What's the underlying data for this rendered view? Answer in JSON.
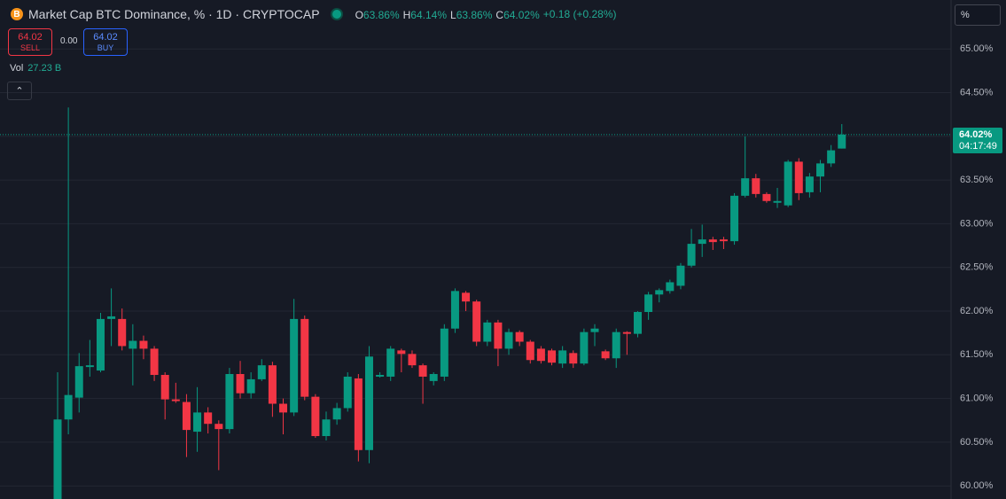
{
  "chart_data": {
    "type": "candlestick",
    "title": "Market Cap BTC Dominance, % · 1D · CRYPTOCAP",
    "ohlc_legend": [
      {
        "label": "O",
        "value": "63.86%"
      },
      {
        "label": "H",
        "value": "64.14%"
      },
      {
        "label": "L",
        "value": "63.86%"
      },
      {
        "label": "C",
        "value": "64.02%"
      }
    ],
    "change": "+0.18 (+0.28%)",
    "sell": {
      "price": "64.02",
      "label": "SELL"
    },
    "spread": "0.00",
    "buy": {
      "price": "64.02",
      "label": "BUY"
    },
    "volume": {
      "label": "Vol",
      "value": "27.23 B"
    },
    "scale_mode": "%",
    "up_color": "#089981",
    "down_color": "#f23645",
    "open": [
      59.85,
      60.76,
      61.01,
      61.36,
      61.32,
      61.91,
      61.91,
      61.57,
      61.66,
      61.57,
      61.27,
      60.99,
      60.96,
      60.62,
      60.84,
      60.71,
      60.65,
      61.28,
      61.06,
      61.22,
      61.38,
      60.94,
      60.84,
      61.91,
      61.02,
      60.57,
      60.76,
      60.89,
      61.23,
      60.41,
      61.25,
      61.25,
      61.55,
      61.51,
      61.38,
      61.2,
      61.25,
      61.8,
      62.21,
      62.11,
      61.65,
      61.87,
      61.57,
      61.76,
      61.65,
      61.57,
      61.55,
      61.4,
      61.52,
      61.4,
      61.76,
      61.54,
      61.46,
      61.76,
      61.74,
      61.99,
      62.19,
      62.23,
      62.29,
      62.52,
      62.77,
      62.82,
      62.82,
      62.8,
      63.32,
      63.52,
      63.34,
      63.24,
      63.21,
      63.71,
      63.36,
      63.54,
      63.69,
      63.86
    ],
    "high": [
      61.3,
      64.33,
      61.52,
      61.67,
      61.98,
      62.26,
      62.03,
      61.85,
      61.72,
      61.6,
      61.3,
      61.18,
      61.05,
      61.13,
      60.9,
      60.75,
      61.35,
      61.43,
      61.3,
      61.45,
      61.42,
      61.0,
      62.14,
      61.95,
      61.05,
      60.85,
      60.95,
      61.3,
      61.28,
      61.6,
      61.3,
      61.6,
      61.57,
      61.55,
      61.4,
      61.3,
      61.85,
      62.26,
      62.23,
      62.13,
      61.9,
      61.9,
      61.8,
      61.78,
      61.67,
      61.6,
      61.57,
      61.6,
      61.55,
      61.8,
      61.85,
      61.56,
      61.8,
      61.77,
      62.0,
      62.22,
      62.26,
      62.36,
      62.55,
      62.94,
      62.99,
      62.85,
      62.85,
      63.35,
      64.0,
      63.57,
      63.36,
      63.41,
      63.73,
      63.75,
      63.58,
      63.73,
      63.9,
      64.14
    ],
    "low": [
      59.85,
      60.59,
      60.84,
      61.25,
      61.3,
      61.6,
      61.55,
      61.15,
      61.45,
      61.2,
      60.76,
      60.95,
      60.33,
      60.39,
      60.6,
      60.18,
      60.6,
      61.0,
      61.0,
      61.2,
      60.79,
      60.59,
      60.8,
      60.98,
      60.55,
      60.52,
      60.7,
      60.85,
      60.28,
      60.26,
      61.24,
      61.2,
      61.3,
      61.35,
      60.94,
      61.15,
      61.2,
      61.75,
      62.0,
      61.6,
      61.6,
      61.37,
      61.5,
      61.6,
      61.4,
      61.4,
      61.38,
      61.35,
      61.35,
      61.38,
      61.6,
      61.44,
      61.35,
      61.5,
      61.7,
      61.9,
      62.1,
      62.2,
      62.25,
      62.5,
      62.62,
      62.7,
      62.71,
      62.76,
      63.3,
      63.3,
      63.24,
      63.18,
      63.19,
      63.27,
      63.3,
      63.36,
      63.65,
      63.86
    ],
    "close": [
      60.76,
      61.04,
      61.37,
      61.38,
      61.91,
      61.94,
      61.6,
      61.66,
      61.57,
      61.27,
      60.99,
      60.97,
      60.64,
      60.84,
      60.71,
      60.65,
      61.28,
      61.06,
      61.22,
      61.38,
      60.94,
      60.84,
      61.91,
      61.02,
      60.57,
      60.76,
      60.89,
      61.25,
      60.41,
      61.48,
      61.27,
      61.57,
      61.51,
      61.38,
      61.25,
      61.28,
      61.8,
      62.23,
      62.11,
      61.65,
      61.87,
      61.57,
      61.76,
      61.65,
      61.44,
      61.43,
      61.41,
      61.55,
      61.4,
      61.76,
      61.8,
      61.46,
      61.76,
      61.74,
      61.99,
      62.19,
      62.24,
      62.33,
      62.52,
      62.77,
      62.82,
      62.79,
      62.8,
      63.32,
      63.52,
      63.34,
      63.26,
      63.26,
      63.71,
      63.35,
      63.54,
      63.69,
      63.84,
      64.02
    ],
    "ylim": [
      59.85,
      65.56
    ],
    "yticks": [
      {
        "value": 60,
        "label": "60.00%"
      },
      {
        "value": 60.5,
        "label": "60.50%"
      },
      {
        "value": 61,
        "label": "61.00%"
      },
      {
        "value": 61.5,
        "label": "61.50%"
      },
      {
        "value": 62,
        "label": "62.00%"
      },
      {
        "value": 62.5,
        "label": "62.50%"
      },
      {
        "value": 63,
        "label": "63.00%"
      },
      {
        "value": 63.5,
        "label": "63.50%"
      },
      {
        "value": 64,
        "label": "64.00%"
      },
      {
        "value": 64.5,
        "label": "64.50%"
      },
      {
        "value": 65,
        "label": "65.00%"
      }
    ],
    "grid": true,
    "last_price": {
      "value": 64.02,
      "label": "64.02%"
    },
    "countdown": "04:17:49"
  }
}
